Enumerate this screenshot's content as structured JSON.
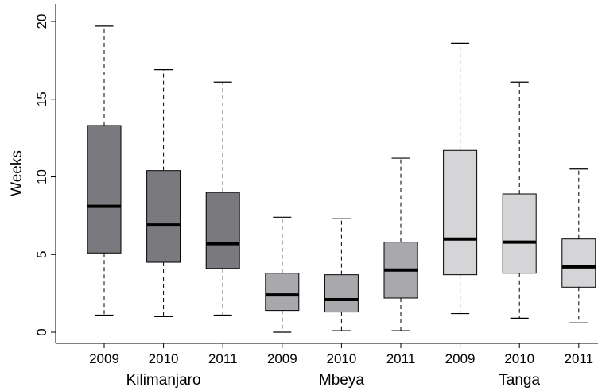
{
  "chart_data": {
    "type": "box",
    "ylabel": "Weeks",
    "ylim": [
      -0.6,
      20.6
    ],
    "yticks": [
      0,
      5,
      10,
      15,
      20
    ],
    "groups": [
      {
        "name": "Kilimanjaro",
        "color": "#7a7a7e",
        "boxes": [
          {
            "label": "2009",
            "min": 1.1,
            "q1": 5.1,
            "median": 8.1,
            "q3": 13.3,
            "max": 19.7
          },
          {
            "label": "2010",
            "min": 1.0,
            "q1": 4.5,
            "median": 6.9,
            "q3": 10.4,
            "max": 16.9
          },
          {
            "label": "2011",
            "min": 1.1,
            "q1": 4.1,
            "median": 5.7,
            "q3": 9.0,
            "max": 16.1
          }
        ]
      },
      {
        "name": "Mbeya",
        "color": "#a8a8ad",
        "boxes": [
          {
            "label": "2009",
            "min": 0.0,
            "q1": 1.4,
            "median": 2.4,
            "q3": 3.8,
            "max": 7.4
          },
          {
            "label": "2010",
            "min": 0.1,
            "q1": 1.3,
            "median": 2.1,
            "q3": 3.7,
            "max": 7.3
          },
          {
            "label": "2011",
            "min": 0.1,
            "q1": 2.2,
            "median": 4.0,
            "q3": 5.8,
            "max": 11.2
          }
        ]
      },
      {
        "name": "Tanga",
        "color": "#d5d5d8",
        "boxes": [
          {
            "label": "2009",
            "min": 1.2,
            "q1": 3.7,
            "median": 6.0,
            "q3": 11.7,
            "max": 18.6
          },
          {
            "label": "2010",
            "min": 0.9,
            "q1": 3.8,
            "median": 5.8,
            "q3": 8.9,
            "max": 16.1
          },
          {
            "label": "2011",
            "min": 0.6,
            "q1": 2.9,
            "median": 4.2,
            "q3": 6.0,
            "max": 10.5
          }
        ]
      }
    ]
  }
}
